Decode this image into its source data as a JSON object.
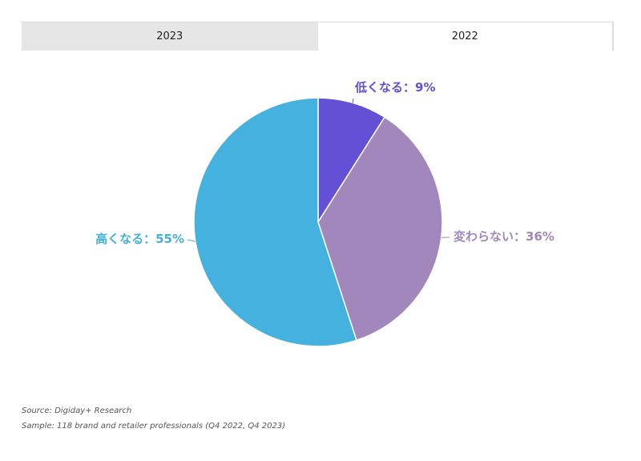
{
  "tabs": [
    {
      "label": "2023",
      "active": false
    },
    {
      "label": "2022",
      "active": true
    }
  ],
  "chart_data": {
    "type": "pie",
    "slices": [
      {
        "label": "低くなる",
        "value": 9,
        "display": "低くなる：9%",
        "color": "#6350d4"
      },
      {
        "label": "変わらない",
        "value": 36,
        "display": "変わらない：36%",
        "color": "#a287bc"
      },
      {
        "label": "高くなる",
        "value": 55,
        "display": "高くなる：55%",
        "color": "#45b1de"
      }
    ]
  },
  "footer": {
    "source": "Source: Digiday+ Research",
    "sample": "Sample: 118 brand and retailer professionals (Q4 2022, Q4 2023)"
  }
}
